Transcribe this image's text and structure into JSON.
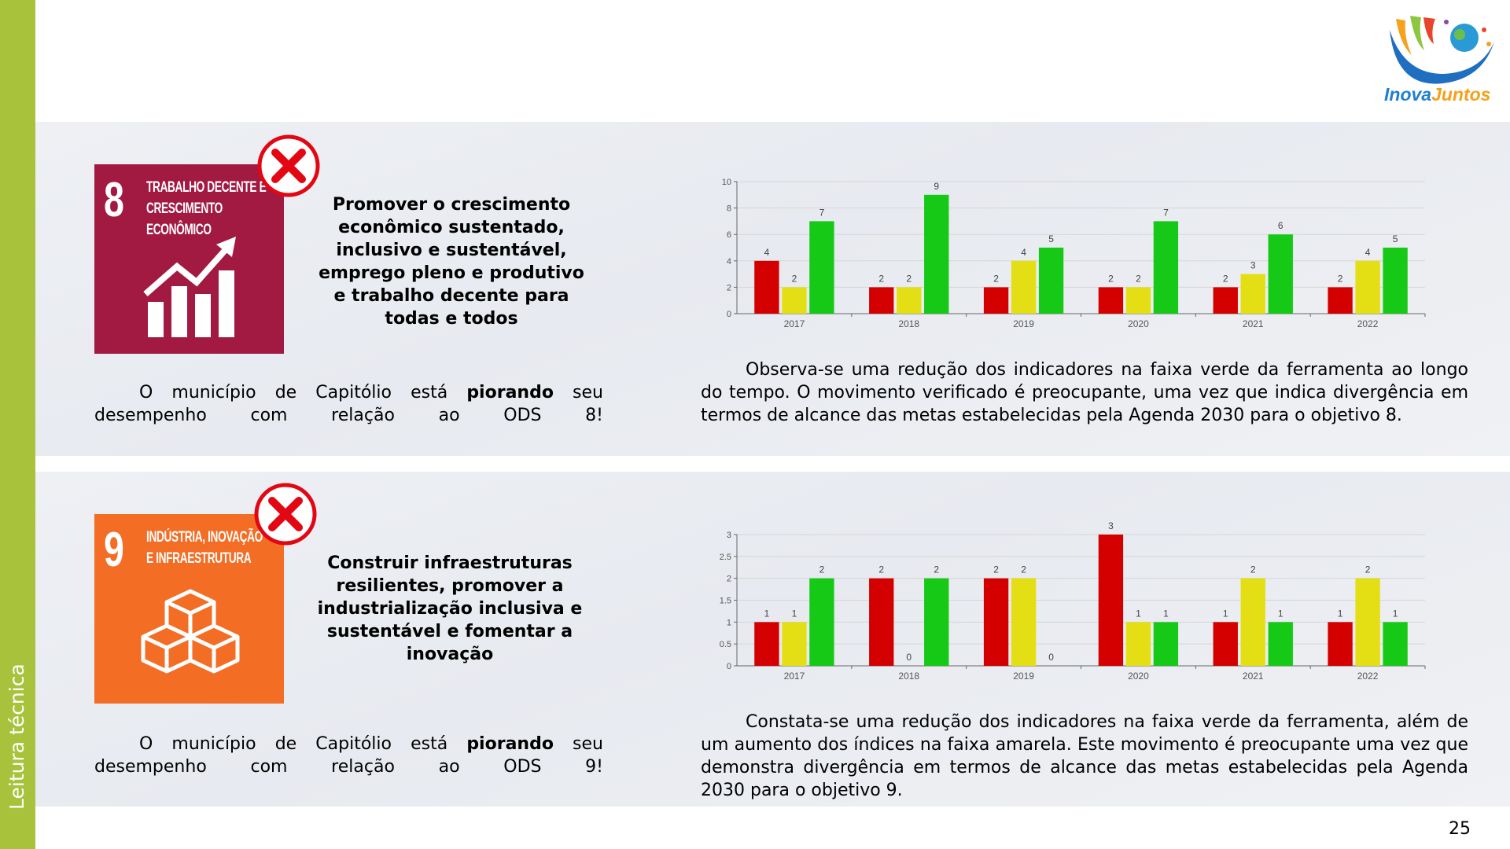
{
  "sidebar": {
    "label": "Leitura técnica"
  },
  "logo": {
    "part_1": "Inova",
    "part_2": "Juntos"
  },
  "page_number": "25",
  "sections": [
    {
      "icon": {
        "number": "8",
        "title_lines": [
          "TRABALHO DECENTE E",
          "CRESCIMENTO",
          "ECONÔMICO"
        ]
      },
      "goal": "Promover o crescimento econômico sustentado, inclusivo e sustentável, emprego pleno e produtivo e trabalho decente para todas e todos",
      "status": {
        "before": "O município de Capitólio está",
        "bold": "piorando",
        "after": "seu desempenho com relação ao ODS 8!"
      },
      "analysis": "Observa-se uma redução dos indicadores na faixa verde da ferramenta ao longo do tempo. O movimento verificado é preocupante, uma vez que indica divergência em termos de alcance das metas estabelecidas pela Agenda 2030 para o objetivo 8."
    },
    {
      "icon": {
        "number": "9",
        "title_lines": [
          "INDÚSTRIA, INOVAÇÃO",
          "E INFRAESTRUTURA"
        ]
      },
      "goal": "Construir infraestruturas resilientes, promover a industrialização inclusiva e sustentável e fomentar a inovação",
      "status": {
        "before": "O município de Capitólio está",
        "bold": "piorando",
        "after": "seu desempenho com relação ao ODS 9!"
      },
      "analysis": "Constata-se uma redução dos indicadores na faixa verde da ferramenta, além de um aumento dos índices na faixa amarela. Este movimento é preocupante uma vez que demonstra divergência em termos de alcance das metas estabelecidas pela Agenda 2030 para o objetivo 9."
    }
  ],
  "chart_data": [
    {
      "type": "bar",
      "categories": [
        "2017",
        "2018",
        "2019",
        "2020",
        "2021",
        "2022"
      ],
      "series": [
        {
          "color": "#d40000",
          "values": [
            4,
            2,
            2,
            2,
            2,
            2
          ]
        },
        {
          "color": "#e4df14",
          "values": [
            2,
            2,
            4,
            2,
            3,
            4
          ]
        },
        {
          "color": "#16c916",
          "values": [
            7,
            9,
            5,
            7,
            6,
            5
          ]
        }
      ],
      "ylim": [
        0,
        10
      ],
      "yticks": [
        0,
        2,
        4,
        6,
        8,
        10
      ],
      "grid": true,
      "data_labels": true
    },
    {
      "type": "bar",
      "categories": [
        "2017",
        "2018",
        "2019",
        "2020",
        "2021",
        "2022"
      ],
      "series": [
        {
          "color": "#d40000",
          "values": [
            1,
            2,
            2,
            3,
            1,
            1
          ]
        },
        {
          "color": "#e4df14",
          "values": [
            1,
            0,
            2,
            1,
            2,
            2
          ]
        },
        {
          "color": "#16c916",
          "values": [
            2,
            2,
            0,
            1,
            1,
            1
          ]
        }
      ],
      "ylim": [
        0,
        3
      ],
      "yticks": [
        0,
        0.5,
        1,
        1.5,
        2,
        2.5,
        3
      ],
      "grid": true,
      "data_labels": true
    }
  ]
}
